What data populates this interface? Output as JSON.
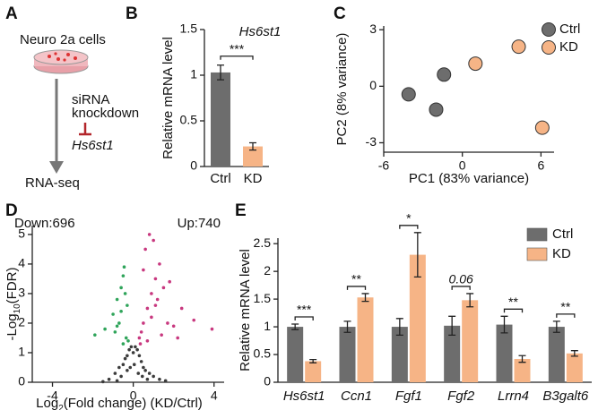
{
  "diagram": {
    "panel_label": "A",
    "cell_line": "Neuro 2a cells",
    "treatment": [
      "siRNA",
      "knockdown"
    ],
    "target": "Hs6st1",
    "output": "RNA-seq"
  },
  "chart_data": [
    {
      "type": "bar",
      "panel_label": "B",
      "title": "Hs6st1",
      "y_label": "Relative mRNA level",
      "categories": [
        "Ctrl",
        "KD"
      ],
      "values": [
        1.03,
        0.22
      ],
      "errors": [
        0.08,
        0.04
      ],
      "colors": [
        "#6d6d6d",
        "#f6b486"
      ],
      "significance": "***",
      "ylim": [
        0,
        1.5
      ],
      "yticks": [
        0,
        0.5,
        1,
        1.5
      ]
    },
    {
      "type": "scatter",
      "panel_label": "C",
      "x_label": "PC1 (83% variance)",
      "y_label": "PC2 (8% variance)",
      "series": [
        {
          "name": "Ctrl",
          "color": "#6d6d6d",
          "x": [
            -4.1,
            -2.0,
            -1.4
          ],
          "values": [
            -0.43,
            -1.24,
            0.62
          ]
        },
        {
          "name": "KD",
          "color": "#f6b486",
          "x": [
            1.0,
            4.3,
            6.1
          ],
          "values": [
            1.2,
            2.1,
            -2.2
          ]
        }
      ],
      "xlim": [
        -6,
        7
      ],
      "ylim": [
        -3.5,
        3.2
      ],
      "xticks": [
        -6,
        0,
        6
      ],
      "yticks": [
        -3,
        0,
        3
      ],
      "legend": "top-right"
    },
    {
      "type": "scatter",
      "panel_label": "D",
      "x_label": [
        "Log",
        "2",
        "(Fold change) (KD/Ctrl)"
      ],
      "y_label": [
        "-Log",
        "10",
        "(FDR)"
      ],
      "annotations": [
        "Down:696",
        "Up:740"
      ],
      "series": [
        {
          "color": "#3b3b3b",
          "x": [
            -1.2,
            -0.9,
            -0.7,
            -0.5,
            -0.4,
            -0.3,
            -0.2,
            -0.1,
            0,
            0.1,
            0.2,
            0.3,
            0.4,
            0.5,
            0.6,
            0.8,
            1.0,
            1.3,
            -0.6,
            -0.3,
            0.05,
            0.25,
            -0.15,
            0.45,
            -0.8,
            0.7,
            1.6,
            -1.5
          ],
          "values": [
            0.1,
            0.3,
            0.5,
            0.6,
            0.8,
            0.9,
            1.1,
            1.2,
            1.0,
            1.2,
            1.1,
            0.9,
            0.7,
            0.5,
            0.4,
            0.3,
            0.2,
            0.1,
            0.2,
            0.4,
            0.6,
            0.3,
            0.5,
            0.2,
            0.05,
            0.1,
            0.05,
            0.02
          ]
        },
        {
          "color": "#2fa45a",
          "x": [
            -1.0,
            -0.8,
            -0.6,
            -0.5,
            -0.4,
            -0.3,
            -0.7,
            -0.9,
            -0.6,
            -0.35,
            -0.5,
            -0.8,
            -1.4,
            -1.9,
            -0.45,
            -0.25
          ],
          "values": [
            2.3,
            2.8,
            3.2,
            3.6,
            3.0,
            2.6,
            2.0,
            1.7,
            2.4,
            1.5,
            1.3,
            1.9,
            1.8,
            1.6,
            3.9,
            1.4
          ]
        },
        {
          "color": "#c8387f",
          "x": [
            0.3,
            0.5,
            0.7,
            0.9,
            1.1,
            1.3,
            1.5,
            0.6,
            0.8,
            1.0,
            1.2,
            0.4,
            0.9,
            1.7,
            2.0,
            2.4,
            3.0,
            3.9,
            0.5,
            1.4,
            0.7,
            1.1,
            0.35,
            2.2,
            1.8
          ],
          "values": [
            1.5,
            2.0,
            2.5,
            3.0,
            3.5,
            4.0,
            3.2,
            4.5,
            5.0,
            4.8,
            2.8,
            1.7,
            2.2,
            2.0,
            1.9,
            2.5,
            2.1,
            1.8,
            3.8,
            1.6,
            1.4,
            2.6,
            1.3,
            1.5,
            3.4
          ]
        }
      ],
      "xlim": [
        -5,
        4.5
      ],
      "ylim": [
        0,
        5.3
      ],
      "xticks": [
        -4,
        0,
        4
      ],
      "yticks": [
        0,
        1,
        2,
        3,
        4,
        5
      ]
    },
    {
      "type": "bar",
      "panel_label": "E",
      "y_label": "Relative mRNA level",
      "categories": [
        "Hs6st1",
        "Ccn1",
        "Fgf1",
        "Fgf2",
        "Lrrn4",
        "B3galt6"
      ],
      "series": [
        {
          "name": "Ctrl",
          "color": "#6d6d6d",
          "values": [
            1.0,
            1.0,
            1.0,
            1.02,
            1.04,
            1.0
          ],
          "errors": [
            0.05,
            0.1,
            0.15,
            0.17,
            0.15,
            0.1
          ]
        },
        {
          "name": "KD",
          "color": "#f6b486",
          "values": [
            0.38,
            1.53,
            2.3,
            1.48,
            0.42,
            0.52
          ],
          "errors": [
            0.03,
            0.07,
            0.4,
            0.12,
            0.06,
            0.05
          ]
        }
      ],
      "significance": [
        "***",
        "**",
        "*",
        "0.06",
        "**",
        "**"
      ],
      "ylim": [
        0,
        2.6
      ],
      "yticks": [
        0,
        0.5,
        1,
        1.5,
        2,
        2.5
      ],
      "legend": "top-right"
    }
  ]
}
